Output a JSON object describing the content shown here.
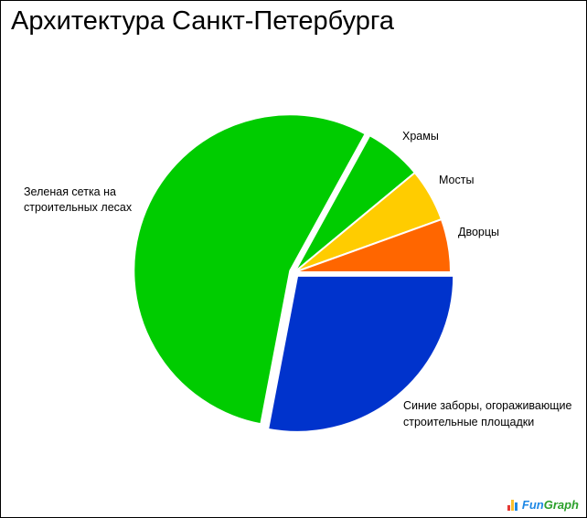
{
  "chart_data": {
    "type": "pie",
    "title": "Архитектура Санкт-Петербурга",
    "slices": [
      {
        "label": "Синие заборы, огораживающие строительные площадки",
        "value": 28,
        "color": "#0033cc",
        "explode": true
      },
      {
        "label": "Зеленая сетка на строительных лесах",
        "value": 55,
        "color": "#00cc00",
        "explode": true
      },
      {
        "label": "Храмы",
        "value": 6,
        "color": "#00cc00",
        "explode": false
      },
      {
        "label": "Мосты",
        "value": 5.5,
        "color": "#ffcc00",
        "explode": false
      },
      {
        "label": "Дворцы",
        "value": 5.5,
        "color": "#ff6600",
        "explode": false
      }
    ],
    "start": "right (3 o'clock), clockwise"
  },
  "brand": {
    "text_part1": "Fun",
    "text_part2": "Graph"
  }
}
